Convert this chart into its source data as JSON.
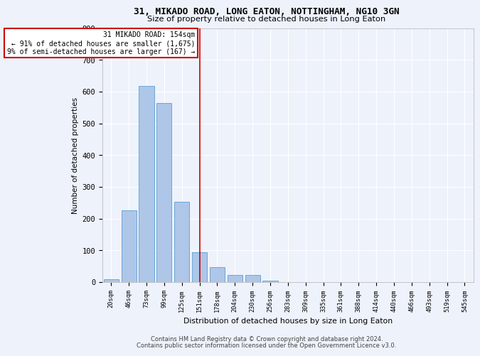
{
  "title1": "31, MIKADO ROAD, LONG EATON, NOTTINGHAM, NG10 3GN",
  "title2": "Size of property relative to detached houses in Long Eaton",
  "xlabel": "Distribution of detached houses by size in Long Eaton",
  "ylabel": "Number of detached properties",
  "bin_labels": [
    "20sqm",
    "46sqm",
    "73sqm",
    "99sqm",
    "125sqm",
    "151sqm",
    "178sqm",
    "204sqm",
    "230sqm",
    "256sqm",
    "283sqm",
    "309sqm",
    "335sqm",
    "361sqm",
    "388sqm",
    "414sqm",
    "440sqm",
    "466sqm",
    "493sqm",
    "519sqm",
    "545sqm"
  ],
  "bar_values": [
    8,
    225,
    618,
    563,
    252,
    95,
    48,
    22,
    22,
    5,
    0,
    0,
    0,
    0,
    0,
    0,
    0,
    0,
    0,
    0,
    0
  ],
  "bar_color": "#aec6e8",
  "bar_edge_color": "#5a9fd4",
  "property_bin_index": 5,
  "annotation_text": "31 MIKADO ROAD: 154sqm\n← 91% of detached houses are smaller (1,675)\n9% of semi-detached houses are larger (167) →",
  "annotation_box_color": "#ffffff",
  "annotation_border_color": "#cc0000",
  "vline_color": "#cc0000",
  "ylim": [
    0,
    800
  ],
  "yticks": [
    0,
    100,
    200,
    300,
    400,
    500,
    600,
    700,
    800
  ],
  "background_color": "#eef2fb",
  "grid_color": "#ffffff",
  "footer1": "Contains HM Land Registry data © Crown copyright and database right 2024.",
  "footer2": "Contains public sector information licensed under the Open Government Licence v3.0."
}
